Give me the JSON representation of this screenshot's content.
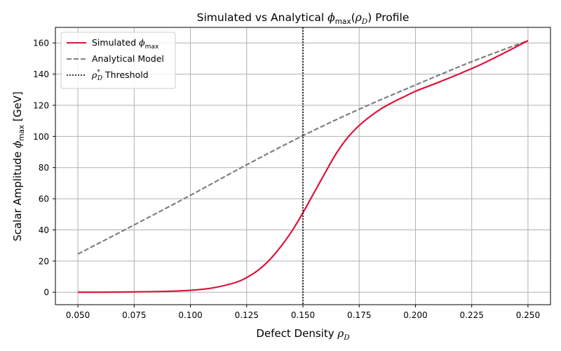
{
  "chart_data": {
    "type": "line",
    "title": {
      "prefix": "Simulated vs Analytical ",
      "math": "ϕ",
      "sub": "max",
      "open": "(",
      "arg": "ρ",
      "arg_sub": "D",
      "close": ")",
      "suffix": " Profile"
    },
    "xlabel": {
      "text": "Defect Density ",
      "math": "ρ",
      "sub": "D"
    },
    "ylabel": {
      "text": "Scalar Amplitude ",
      "math": "ϕ",
      "sub": "max",
      "unit": " [GeV]"
    },
    "xlim": [
      0.04,
      0.26
    ],
    "ylim": [
      -8,
      170
    ],
    "x_ticks": [
      0.05,
      0.075,
      0.1,
      0.125,
      0.15,
      0.175,
      0.2,
      0.225,
      0.25
    ],
    "x_tick_labels": [
      "0.050",
      "0.075",
      "0.100",
      "0.125",
      "0.150",
      "0.175",
      "0.200",
      "0.225",
      "0.250"
    ],
    "y_ticks": [
      0,
      20,
      40,
      60,
      80,
      100,
      120,
      140,
      160
    ],
    "y_tick_labels": [
      "0",
      "20",
      "40",
      "60",
      "80",
      "100",
      "120",
      "140",
      "160"
    ],
    "grid": true,
    "legend_position": "top-left",
    "series": [
      {
        "name": "Simulated ϕmax",
        "legend": {
          "text": "Simulated ",
          "math": "ϕ",
          "sub": "max"
        },
        "color": "#dc143c",
        "style": "solid",
        "x": [
          0.05,
          0.06,
          0.07,
          0.08,
          0.09,
          0.1,
          0.11,
          0.12,
          0.125,
          0.13,
          0.135,
          0.14,
          0.145,
          0.15,
          0.155,
          0.16,
          0.165,
          0.17,
          0.175,
          0.18,
          0.185,
          0.19,
          0.195,
          0.2,
          0.21,
          0.22,
          0.23,
          0.24,
          0.25
        ],
        "y": [
          0,
          0,
          0.1,
          0.3,
          0.6,
          1.2,
          2.8,
          6.2,
          9.4,
          14,
          20.5,
          29,
          39,
          51,
          64,
          77,
          89.5,
          99.5,
          107,
          113,
          118,
          122,
          125.5,
          129,
          134.6,
          140.5,
          146.8,
          154,
          161.5
        ]
      },
      {
        "name": "Analytical Model",
        "legend": {
          "text": "Analytical Model"
        },
        "color": "#808080",
        "style": "dashed",
        "x": [
          0.05,
          0.075,
          0.1,
          0.125,
          0.15,
          0.175,
          0.2,
          0.225,
          0.25
        ],
        "y": [
          24.5,
          43.2,
          62.2,
          81.8,
          100.5,
          117.5,
          133,
          148,
          161.5
        ]
      }
    ],
    "annotations": [
      {
        "type": "vline",
        "x": 0.15,
        "style": "dotted",
        "color": "#000000",
        "legend": {
          "math": "ρ",
          "sub": "D",
          "sup": "*",
          "text": " Threshold"
        }
      }
    ]
  }
}
